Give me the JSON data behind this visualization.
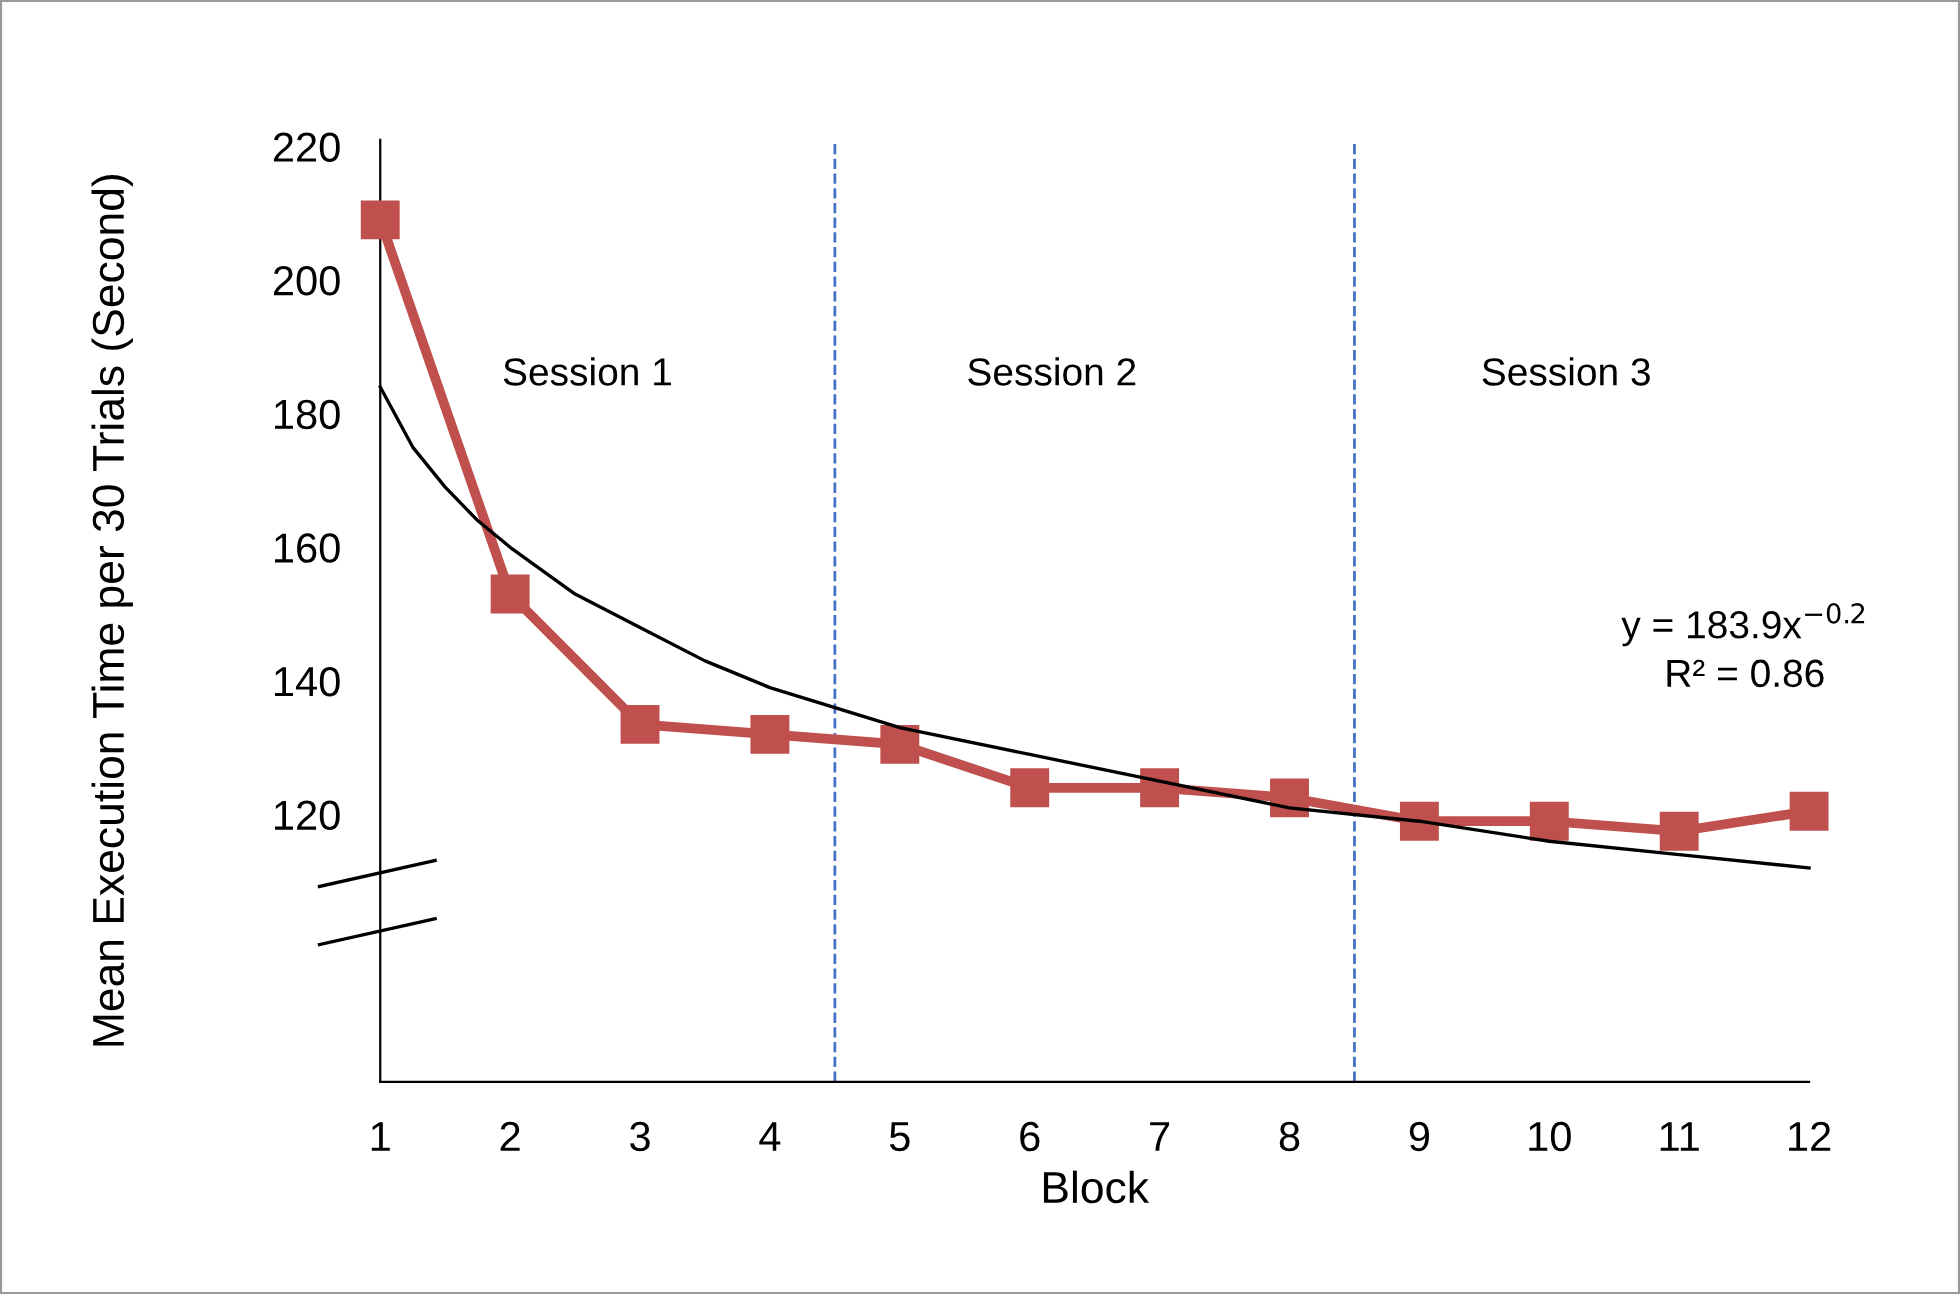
{
  "chart_data": {
    "type": "line",
    "xlabel": "Block",
    "ylabel": "Mean Execution Time per 30 Trials (Second)",
    "x": [
      1,
      2,
      3,
      4,
      5,
      6,
      7,
      8,
      9,
      10,
      11,
      12
    ],
    "series": [
      {
        "color": "#c0504d",
        "marker": "square",
        "values": [
          209,
          153,
          133.5,
          132,
          130.5,
          124,
          124,
          122.5,
          119,
          119,
          117.5,
          120.5
        ]
      },
      {
        "type": "line",
        "color": "#000000",
        "marker": "none",
        "x": [
          1,
          1.25,
          1.5,
          1.75,
          2,
          2.5,
          3,
          3.5,
          4,
          5,
          6,
          7,
          8,
          9,
          10,
          11,
          12
        ],
        "values": [
          184,
          175,
          169,
          164,
          160,
          153,
          148,
          143,
          139,
          133,
          129,
          125,
          121,
          119,
          116,
          114,
          112
        ]
      }
    ],
    "xlim": [
      1,
      12
    ],
    "xticks": [
      1,
      2,
      3,
      4,
      5,
      6,
      7,
      8,
      9,
      10,
      11,
      12
    ],
    "ylim": [
      80,
      221
    ],
    "yticks": [
      120,
      140,
      160,
      180,
      200,
      220
    ],
    "ref_lines": [
      {
        "axis": "x",
        "value": 4.5,
        "color": "#4472c4",
        "line_style": "dashed"
      },
      {
        "axis": "x",
        "value": 8.5,
        "color": "#4472c4",
        "line_style": "dashed"
      }
    ],
    "annotations": [
      "Session 1",
      "Session 2",
      "Session 3",
      "y = 183.9x$^{−0.2}$",
      "R² = 0.86"
    ],
    "grid": false,
    "legend": false
  }
}
